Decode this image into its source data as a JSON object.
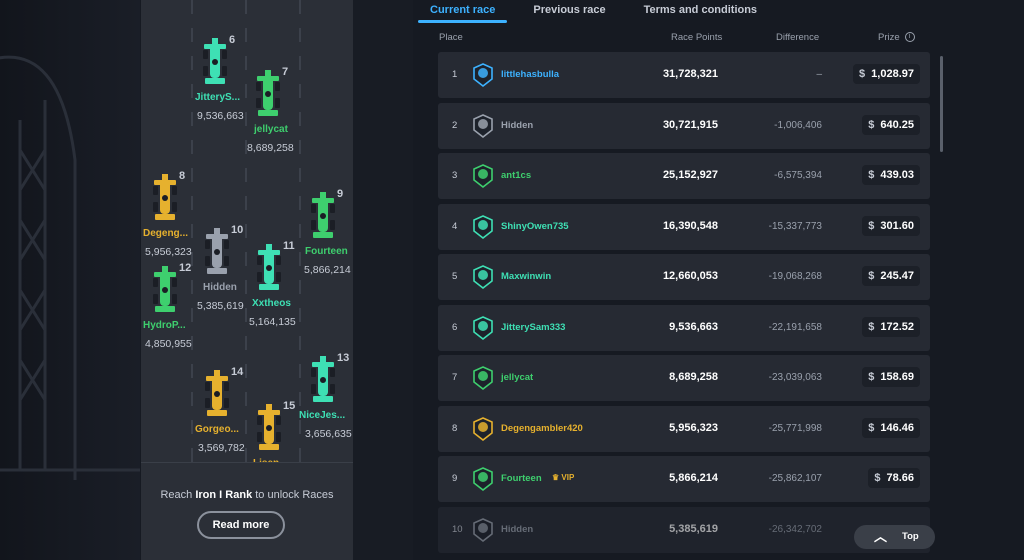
{
  "tabs": [
    {
      "label": "Current race",
      "active": true
    },
    {
      "label": "Previous race",
      "active": false
    },
    {
      "label": "Terms and conditions",
      "active": false
    }
  ],
  "columns": {
    "place": "Place",
    "race_points": "Race Points",
    "difference": "Difference",
    "prize": "Prize"
  },
  "currency_symbol": "$",
  "leaderboard": [
    {
      "place": "1",
      "user": "littlehasbulla",
      "points": "31,728,321",
      "difference": "–",
      "prize": "1,028.97",
      "name_color": "#3db2ff",
      "avatar_color": "#3db2ff"
    },
    {
      "place": "2",
      "user": "Hidden",
      "points": "30,721,915",
      "difference": "-1,006,406",
      "prize": "640.25",
      "name_color": "#9aa1ad",
      "avatar_color": "#9aa1ad"
    },
    {
      "place": "3",
      "user": "ant1cs",
      "points": "25,152,927",
      "difference": "-6,575,394",
      "prize": "439.03",
      "name_color": "#3ecf6e",
      "avatar_color": "#3ecf6e"
    },
    {
      "place": "4",
      "user": "ShinyOwen735",
      "points": "16,390,548",
      "difference": "-15,337,773",
      "prize": "301.60",
      "name_color": "#3ee0b4",
      "avatar_color": "#3ee0b4"
    },
    {
      "place": "5",
      "user": "Maxwinwin",
      "points": "12,660,053",
      "difference": "-19,068,268",
      "prize": "245.47",
      "name_color": "#3ee0b4",
      "avatar_color": "#3ee0b4"
    },
    {
      "place": "6",
      "user": "JitterySam333",
      "points": "9,536,663",
      "difference": "-22,191,658",
      "prize": "172.52",
      "name_color": "#3ee0b4",
      "avatar_color": "#3ee0b4"
    },
    {
      "place": "7",
      "user": "jellycat",
      "points": "8,689,258",
      "difference": "-23,039,063",
      "prize": "158.69",
      "name_color": "#3ecf6e",
      "avatar_color": "#3ecf6e"
    },
    {
      "place": "8",
      "user": "Degengambler420",
      "points": "5,956,323",
      "difference": "-25,771,998",
      "prize": "146.46",
      "name_color": "#e6b12e",
      "avatar_color": "#e6b12e"
    },
    {
      "place": "9",
      "user": "Fourteen",
      "points": "5,866,214",
      "difference": "-25,862,107",
      "prize": "78.66",
      "name_color": "#3ecf6e",
      "avatar_color": "#3ecf6e",
      "vip": "VIP"
    },
    {
      "place": "10",
      "user": "Hidden",
      "points": "5,385,619",
      "difference": "-26,342,702",
      "prize": "",
      "name_color": "#9aa1ad",
      "avatar_color": "#9aa1ad"
    }
  ],
  "track_cars": [
    {
      "pos": "6",
      "name": "JitteryS...",
      "points": "9,536,663",
      "color": "#3ee0b4"
    },
    {
      "pos": "7",
      "name": "jellycat",
      "points": "8,689,258",
      "color": "#3ecf6e"
    },
    {
      "pos": "8",
      "name": "Degeng...",
      "points": "5,956,323",
      "color": "#e6b12e"
    },
    {
      "pos": "9",
      "name": "Fourteen",
      "points": "5,866,214",
      "color": "#3ecf6e"
    },
    {
      "pos": "10",
      "name": "Hidden",
      "points": "5,385,619",
      "color": "#9aa1ad"
    },
    {
      "pos": "11",
      "name": "Xxtheos",
      "points": "5,164,135",
      "color": "#3ee0b4"
    },
    {
      "pos": "12",
      "name": "HydroP...",
      "points": "4,850,955",
      "color": "#3ecf6e"
    },
    {
      "pos": "13",
      "name": "NiceJes...",
      "points": "3,656,635",
      "color": "#3ee0b4"
    },
    {
      "pos": "14",
      "name": "Gorgeo...",
      "points": "3,569,782",
      "color": "#e6b12e"
    },
    {
      "pos": "15",
      "name": "Lisen...",
      "points": "",
      "color": "#e6b12e"
    }
  ],
  "unlock": {
    "prefix": "Reach ",
    "rank": "Iron I Rank",
    "suffix": " to unlock Races"
  },
  "read_more": "Read more",
  "top_button": "Top"
}
